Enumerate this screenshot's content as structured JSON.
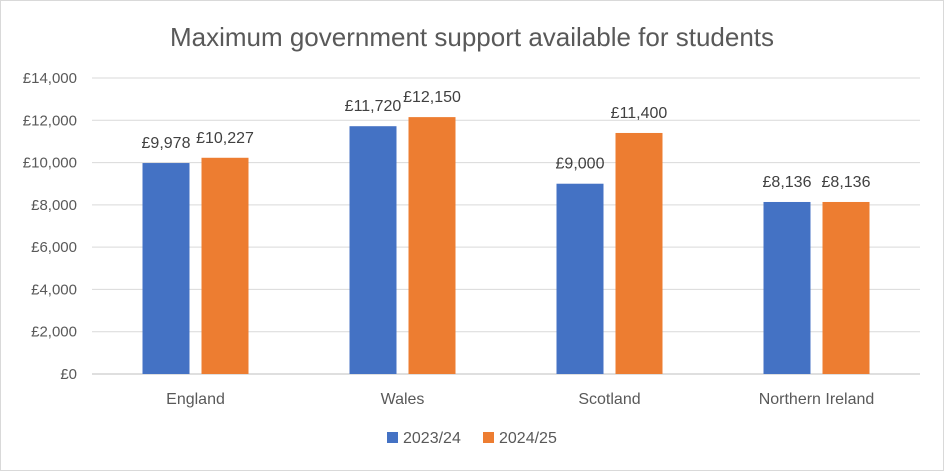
{
  "chart_data": {
    "type": "bar",
    "title": "Maximum government support available for students",
    "categories": [
      "England",
      "Wales",
      "Scotland",
      "Northern Ireland"
    ],
    "series": [
      {
        "name": "2023/24",
        "color": "#4472c4",
        "values": [
          9978,
          11720,
          9000,
          8136
        ],
        "labels": [
          "£9,978",
          "£11,720",
          "£9,000",
          "£8,136"
        ]
      },
      {
        "name": "2024/25",
        "color": "#ed7d31",
        "values": [
          10227,
          12150,
          11400,
          8136
        ],
        "labels": [
          "£10,227",
          "£12,150",
          "£11,400",
          "£8,136"
        ]
      }
    ],
    "ylim": [
      0,
      14000
    ],
    "yticks": [
      0,
      2000,
      4000,
      6000,
      8000,
      10000,
      12000,
      14000
    ],
    "ytick_labels": [
      "£0",
      "£2,000",
      "£4,000",
      "£6,000",
      "£8,000",
      "£10,000",
      "£12,000",
      "£14,000"
    ],
    "grid": true,
    "legend_position": "bottom"
  }
}
